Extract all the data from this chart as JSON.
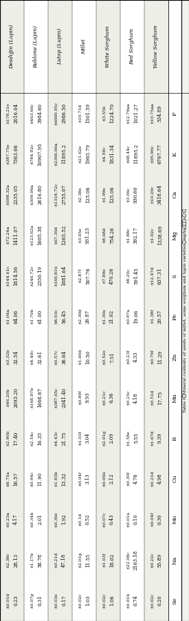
{
  "title": "Table 6　Mineral contents of seeds of millet, some sorghum and lupin varieties（mg/kg），（n：3）",
  "col_headers": [
    "P",
    "K",
    "Ca",
    "Mg",
    "S",
    "Fe",
    "Zn",
    "Mn",
    "B",
    "Cu",
    "Mo",
    "Na",
    "Se"
  ],
  "rows": [
    {
      "name": "Yellow Sorghum",
      "vals": [
        "534.89",
        "6767.77",
        "3418.64",
        "1338.69",
        "637.31",
        "20.57",
        "11.29",
        "17.75",
        "9.39",
        "4.98",
        "0.30",
        "55.89",
        "0.20"
      ],
      "errs": [
        "±10.75",
        "±95.90",
        "±10.20",
        "±1.02",
        "±12.47",
        "±1.38",
        "±0.79",
        "±0.51",
        "±1.67",
        "±0.21",
        "±0.04",
        "±0.22",
        "±0.02"
      ],
      "sups": [
        "aa",
        "c",
        "c",
        "c",
        "d",
        "f",
        "f",
        "d",
        "d",
        "d",
        "f",
        "c",
        "c"
      ]
    },
    {
      "name": "Red Sorghum",
      "vals": [
        "1021.27",
        "11895.2",
        "930.60",
        "392.17",
        "591.45",
        "19.06",
        "4.33",
        "4.18",
        "5.55",
        "4.76",
        "0.10",
        "2163.18",
        "0.74"
      ],
      "errs": [
        "±12.79",
        "±68.44",
        "±3.06",
        "±1.88",
        "±8.20",
        "±0.97",
        "±0.23",
        "±0.25",
        "±1.58",
        "±0.30",
        "±0.01",
        "±22.08",
        "±0.01"
      ],
      "sups": [
        "aa",
        "c",
        "c",
        "c",
        "c",
        "a",
        "f",
        "c",
        "e",
        "f",
        "a",
        "c",
        "b"
      ]
    },
    {
      "name": "White Sorghum",
      "vals": [
        "1224.70",
        "1831.34",
        "125.06",
        "754.26",
        "470.26",
        "21.02",
        "7.51",
        "6.36",
        "2.09",
        "2.12",
        "0.43",
        "18.02",
        "1.06"
      ],
      "errs": [
        "±3.55",
        "±4.59",
        "±1.99",
        "±8.68",
        "±7.89",
        "±1.30",
        "±0.52",
        "±0.21",
        "±2.01",
        "±0.06",
        "±0.07",
        "±1.03",
        "±0.02"
      ],
      "sups": [
        "b",
        "c",
        "e",
        "d",
        "e",
        "e",
        "e",
        "c",
        "g",
        "b",
        "c",
        "f",
        "c"
      ]
    },
    {
      "name": "Millet",
      "vals": [
        "1501.59",
        "1965.79",
        "125.06",
        "931.23",
        "507.76",
        "26.87",
        "10.50",
        "9.93",
        "3.04",
        "3.13",
        "0.52",
        "11.55",
        "1.03"
      ],
      "errs": [
        "±10.71",
        "±21.62",
        "±2.38",
        "±3.65",
        "±2.87",
        "±2.30",
        "±1.00",
        "±0.89",
        "±1.03",
        "±0.04",
        "±0.1",
        "±2.01",
        "±0.02"
      ],
      "sups": [
        "d",
        "e",
        "e",
        "e",
        "f",
        "d",
        "d",
        "f",
        "f",
        "f",
        "d",
        "g",
        "c"
      ]
    },
    {
      "name": "Lutop (Lupin)",
      "vals": [
        "2986.50",
        "11895.2",
        "2755.07",
        "1265.52",
        "1881.64",
        "56.45",
        "36.64",
        "2341.40",
        "21.75",
        "13.32",
        "1.92",
        "47.18",
        "0.17"
      ],
      "errs": [
        "±6660.95",
        "±2366.66",
        "±1318.72",
        "±67.36",
        "±166.81",
        "±8.03",
        "±6.57",
        "±387.65",
        "±4.43",
        "±1.93",
        "±0.36",
        "±0.21",
        "±0.03"
      ],
      "sups": [
        "c",
        "a",
        "c",
        "d",
        "b",
        "c",
        "c",
        "c",
        "c",
        "b",
        "e",
        "d",
        "e"
      ]
    },
    {
      "name": "Bablone (Lupin)",
      "vals": [
        "3984.60",
        "10907.95",
        "2616.80",
        "1605.38",
        "2350.19",
        "61.00",
        "32.61",
        "1668.67",
        "16.35",
        "11.90",
        "2.01",
        "58.78",
        "0.31"
      ],
      "errs": [
        "±463.66",
        "±784.92",
        "±309.06",
        "±123.62",
        "±246.72",
        "±1.70",
        "±4.40",
        "±168.97",
        "±2.54",
        "±0.94",
        "±0.34",
        "±1.17",
        "±0.07"
      ],
      "sups": [
        "c",
        "c",
        "a",
        "a",
        "c",
        "b",
        "c",
        "b",
        "c",
        "c",
        "b",
        "b",
        "g"
      ]
    },
    {
      "name": "Desdiğin (Lupin)",
      "vals": [
        "2016.04",
        "7363.66",
        "2235.05",
        "1411.07",
        "1814.56",
        "64.06",
        "32.54",
        "2093.20",
        "17.40",
        "16.57",
        "4.17",
        "28.13",
        "0.23"
      ],
      "errs": [
        "±178.21",
        "±387.75",
        "±598.32",
        "±72.24",
        "±144.61",
        "±1.04",
        "±3.32",
        "±46.20",
        "±2.90",
        "±8.75",
        "±0.23",
        "±2.38",
        "±0.01"
      ],
      "sups": [
        "e",
        "e",
        "a",
        "a",
        "c",
        "a",
        "b",
        "b",
        "b",
        "a",
        "a",
        "c",
        "d"
      ]
    }
  ],
  "bg_color": "#f2f2ee",
  "font_size": 5.5,
  "header_font_size": 6.0,
  "name_font_size": 5.5
}
